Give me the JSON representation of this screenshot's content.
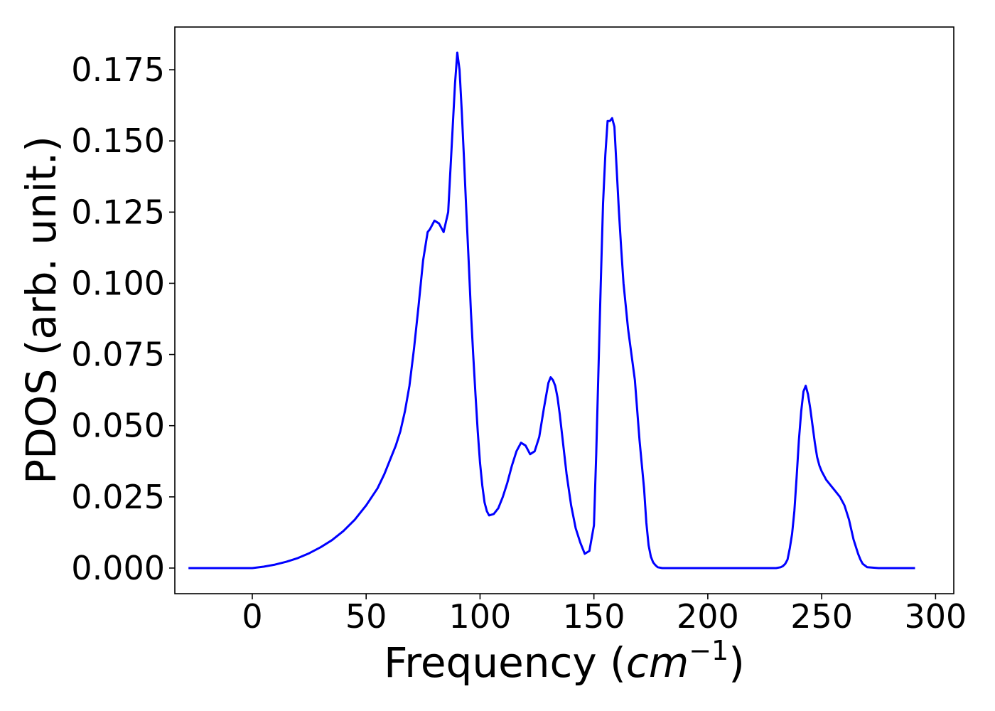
{
  "chart_data": {
    "type": "line",
    "title": "",
    "xlabel_main": "Frequency (",
    "xlabel_math": "cm",
    "xlabel_sup": "−1",
    "xlabel_close": ")",
    "ylabel": "PDOS (arb. unit.)",
    "xlim": [
      -34,
      308
    ],
    "ylim": [
      -0.009,
      0.19
    ],
    "xticks": [
      0,
      50,
      100,
      150,
      200,
      250,
      300
    ],
    "xtick_labels": [
      "0",
      "50",
      "100",
      "150",
      "200",
      "250",
      "300"
    ],
    "yticks": [
      0.0,
      0.025,
      0.05,
      0.075,
      0.1,
      0.125,
      0.15,
      0.175
    ],
    "ytick_labels": [
      "0.000",
      "0.025",
      "0.050",
      "0.075",
      "0.100",
      "0.125",
      "0.150",
      "0.175"
    ],
    "grid": false,
    "legend": "none",
    "series": [
      {
        "color": "#0000ff",
        "x": [
          -28,
          -10,
          0,
          5,
          10,
          15,
          20,
          25,
          30,
          35,
          40,
          45,
          50,
          55,
          58,
          60,
          63,
          65,
          67,
          69,
          71,
          73,
          75,
          77,
          78,
          80,
          82,
          84,
          86,
          87,
          88,
          89,
          90,
          91,
          92,
          93,
          94,
          95,
          96,
          97,
          98,
          99,
          100,
          101,
          102,
          103,
          104,
          106,
          108,
          110,
          112,
          114,
          116,
          118,
          120,
          122,
          124,
          126,
          128,
          130,
          131,
          132,
          133,
          134,
          135,
          136,
          137,
          138,
          140,
          142,
          144,
          146,
          148,
          150,
          151,
          152,
          153,
          154,
          155,
          156,
          157,
          158,
          159,
          160,
          161,
          162,
          163,
          164,
          165,
          166,
          168,
          170,
          172,
          173,
          174,
          175,
          176,
          177,
          178,
          180,
          190,
          200,
          210,
          220,
          230,
          232,
          233,
          234,
          235,
          236,
          237,
          238,
          239,
          240,
          241,
          242,
          243,
          244,
          245,
          246,
          247,
          248,
          249,
          250,
          252,
          254,
          256,
          258,
          260,
          262,
          264,
          266,
          267,
          268,
          270,
          275,
          291
        ],
        "y": [
          0.0,
          0.0,
          0.0,
          0.0005,
          0.0012,
          0.0022,
          0.0035,
          0.0052,
          0.0073,
          0.0098,
          0.013,
          0.017,
          0.022,
          0.028,
          0.033,
          0.037,
          0.043,
          0.048,
          0.055,
          0.064,
          0.077,
          0.092,
          0.108,
          0.118,
          0.119,
          0.122,
          0.121,
          0.118,
          0.125,
          0.14,
          0.155,
          0.17,
          0.181,
          0.175,
          0.16,
          0.143,
          0.125,
          0.108,
          0.09,
          0.075,
          0.061,
          0.048,
          0.037,
          0.029,
          0.023,
          0.02,
          0.0185,
          0.019,
          0.021,
          0.025,
          0.03,
          0.036,
          0.041,
          0.044,
          0.043,
          0.04,
          0.041,
          0.046,
          0.056,
          0.065,
          0.067,
          0.066,
          0.064,
          0.06,
          0.054,
          0.047,
          0.04,
          0.033,
          0.022,
          0.014,
          0.009,
          0.005,
          0.006,
          0.015,
          0.04,
          0.07,
          0.1,
          0.128,
          0.145,
          0.157,
          0.157,
          0.158,
          0.155,
          0.14,
          0.125,
          0.112,
          0.1,
          0.092,
          0.084,
          0.078,
          0.066,
          0.045,
          0.028,
          0.016,
          0.008,
          0.004,
          0.002,
          0.001,
          0.0003,
          0.0,
          0.0,
          0.0,
          0.0,
          0.0,
          0.0,
          0.0003,
          0.0007,
          0.0015,
          0.003,
          0.007,
          0.012,
          0.02,
          0.032,
          0.045,
          0.055,
          0.062,
          0.064,
          0.061,
          0.056,
          0.05,
          0.044,
          0.039,
          0.036,
          0.034,
          0.031,
          0.029,
          0.027,
          0.025,
          0.022,
          0.017,
          0.01,
          0.005,
          0.003,
          0.0015,
          0.0003,
          0.0,
          0.0
        ]
      }
    ]
  }
}
